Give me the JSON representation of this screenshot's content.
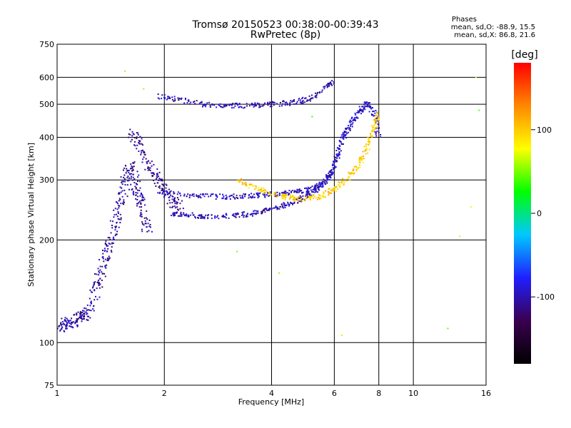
{
  "header": {
    "title_line1": "Tromsø 20150523 00:38:00-00:39:43",
    "title_line2": "RwPretec (8p)"
  },
  "phases": {
    "title": "Phases",
    "line_o": "mean, sd,O: -88.9, 15.5",
    "line_x": "mean, sd,X: 86.8, 21.6"
  },
  "colorbar": {
    "unit": "[deg]",
    "ticks": [
      "100",
      "0",
      "-100"
    ],
    "range": [
      -180,
      180
    ],
    "colors": [
      "#000000",
      "#3a0050",
      "#1f1fff",
      "#00c8ff",
      "#00ff00",
      "#ffff00",
      "#ff8800",
      "#ff0000"
    ]
  },
  "chart_data": {
    "type": "scatter",
    "title": "Tromsø 20150523 00:38:00-00:39:43",
    "subtitle": "RwPretec (8p)",
    "xlabel": "Frequency [MHz]",
    "ylabel": "Stationary phase Virtual Height [km]",
    "x_scale": "log",
    "y_scale": "log",
    "xlim": [
      1,
      16
    ],
    "ylim": [
      75,
      750
    ],
    "x_ticks": [
      1,
      2,
      4,
      6,
      8,
      10,
      16
    ],
    "x_tick_labels": [
      "1",
      "2",
      "4",
      "6",
      "8",
      "10",
      "16"
    ],
    "y_ticks": [
      75,
      100,
      200,
      300,
      400,
      500,
      600,
      750
    ],
    "y_tick_labels": [
      "75",
      "100",
      "200",
      "300",
      "400",
      "500",
      "600",
      "750"
    ],
    "grid": true,
    "color_scale_unit": "[deg]",
    "series": [
      {
        "x": [
          1.02,
          1.05,
          1.1,
          1.15,
          1.2,
          1.25,
          1.3,
          1.35,
          1.4,
          1.45,
          1.5,
          1.55,
          1.6,
          1.65,
          1.7,
          1.75,
          1.8
        ],
        "y": [
          110,
          115,
          112,
          120,
          118,
          130,
          150,
          170,
          190,
          220,
          250,
          290,
          330,
          300,
          270,
          240,
          210
        ],
        "phase": -105
      },
      {
        "x": [
          1.6,
          1.7,
          1.8,
          1.9,
          2.0,
          2.1,
          2.2
        ],
        "y": [
          420,
          380,
          330,
          300,
          280,
          260,
          250
        ],
        "phase": -110
      },
      {
        "x": [
          2.1,
          2.3,
          2.6,
          3.0,
          3.4,
          3.8,
          4.2,
          4.6,
          5.0,
          5.3,
          5.6
        ],
        "y": [
          240,
          237,
          235,
          235,
          238,
          243,
          250,
          258,
          268,
          280,
          295
        ],
        "phase": -100
      },
      {
        "x": [
          1.9,
          2.2,
          2.6,
          3.0,
          3.5,
          4.0,
          4.5,
          5.0,
          5.5,
          5.9
        ],
        "y": [
          530,
          515,
          500,
          495,
          495,
          500,
          505,
          515,
          540,
          580
        ],
        "phase": -100
      },
      {
        "x": [
          2.0,
          2.4,
          2.8,
          3.2,
          3.6,
          4.0,
          4.5,
          5.0,
          5.5,
          6.0
        ],
        "y": [
          275,
          270,
          268,
          268,
          270,
          272,
          275,
          280,
          290,
          320
        ],
        "phase": -95
      },
      {
        "x": [
          5.6,
          5.9,
          6.1,
          6.3,
          6.5,
          6.8,
          7.1,
          7.4,
          7.8,
          8.0
        ],
        "y": [
          290,
          320,
          350,
          390,
          420,
          450,
          480,
          500,
          470,
          390
        ],
        "phase": -95
      },
      {
        "x": [
          3.2,
          3.6,
          4.0,
          4.5,
          5.0,
          5.5,
          6.0,
          6.5,
          7.0,
          7.4,
          7.7,
          8.0
        ],
        "y": [
          300,
          285,
          272,
          266,
          264,
          268,
          282,
          300,
          330,
          370,
          420,
          470
        ],
        "phase": 100
      },
      {
        "x": [
          1.55,
          1.75,
          3.2,
          4.2,
          5.2,
          6.3,
          12.5,
          13.5,
          14.5,
          15.0,
          15.3
        ],
        "y": [
          625,
          555,
          185,
          160,
          460,
          105,
          110,
          205,
          250,
          600,
          480
        ],
        "phase": 60
      }
    ]
  }
}
